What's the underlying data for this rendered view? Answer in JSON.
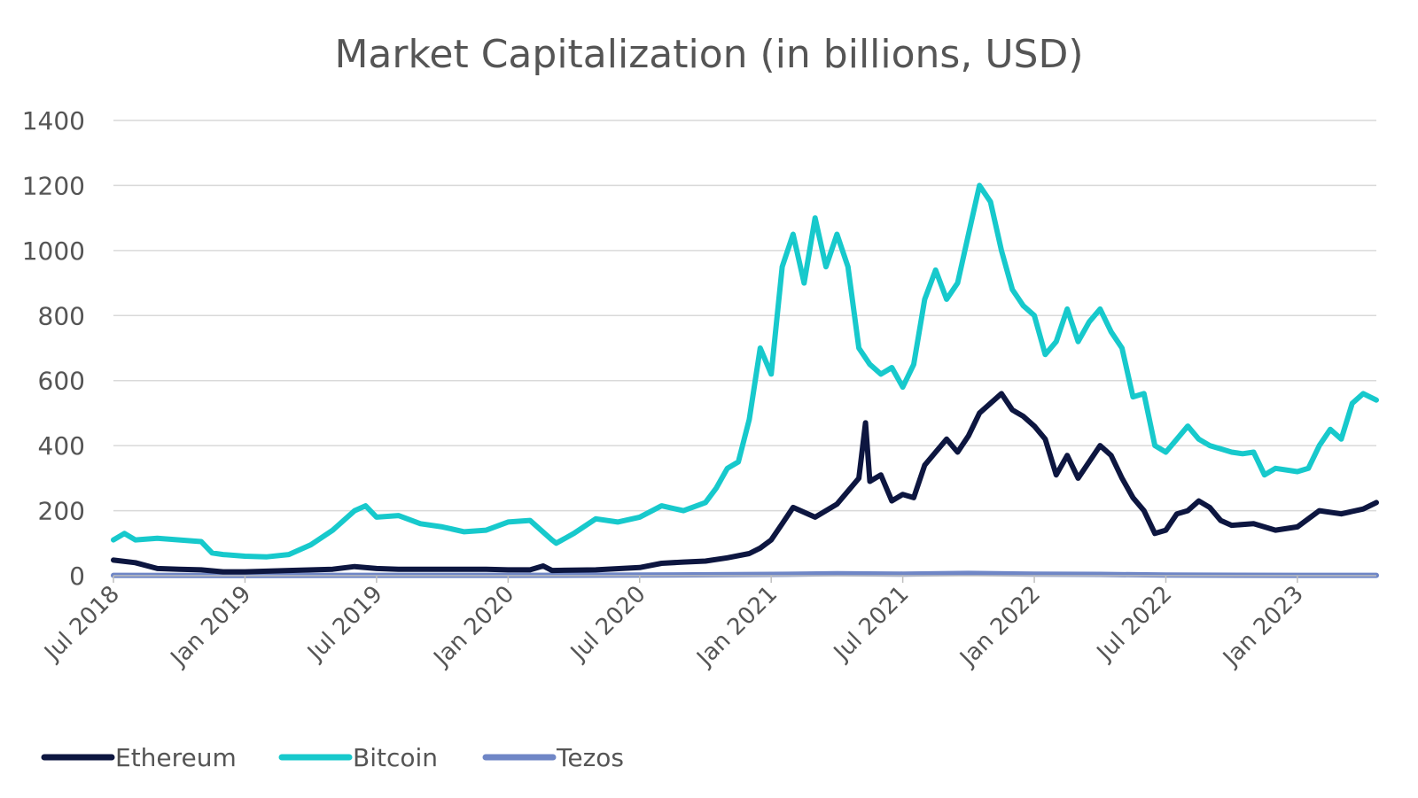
{
  "chart_data": {
    "type": "line",
    "title": "Market Capitalization (in billions, USD)",
    "xlabel": "",
    "ylabel": "",
    "ylim": [
      0,
      1400
    ],
    "yticks": [
      0,
      200,
      400,
      600,
      800,
      1000,
      1200,
      1400
    ],
    "ytick_labels": [
      "0",
      "200",
      "400",
      "600",
      "800",
      "1000",
      "1200",
      "1400"
    ],
    "xlim": [
      0,
      57.6
    ],
    "xticks": [
      0,
      6,
      12,
      18,
      24,
      30,
      36,
      42,
      48,
      54
    ],
    "xtick_labels": [
      "Jul 2018",
      "Jan 2019",
      "Jul 2019",
      "Jan 2020",
      "Jul 2020",
      "Jan 2021",
      "Jul 2021",
      "Jan 2022",
      "Jul 2022",
      "Jan 2023"
    ],
    "x_unit": "months since Jul 2018",
    "grid": true,
    "legend_position": "bottom-left",
    "series": [
      {
        "name": "Ethereum",
        "color": "#0d1640",
        "x": [
          0,
          1,
          2,
          3,
          4,
          5,
          6,
          8,
          10,
          11,
          12,
          13,
          15,
          17,
          18,
          19,
          19.6,
          20,
          22,
          24,
          25,
          26,
          27,
          28,
          29,
          29.5,
          30,
          30.5,
          31,
          32,
          33,
          34,
          34.3,
          34.5,
          35,
          35.5,
          36,
          36.5,
          37,
          37.5,
          38,
          38.5,
          39,
          39.5,
          40,
          40.5,
          41,
          41.5,
          42,
          42.5,
          43,
          43.5,
          44,
          45,
          45.5,
          46,
          46.5,
          47,
          47.5,
          48,
          48.5,
          49,
          49.5,
          50,
          50.5,
          51,
          52,
          53,
          54,
          55,
          56,
          57,
          57.6
        ],
        "values": [
          48,
          40,
          22,
          20,
          18,
          12,
          12,
          16,
          20,
          28,
          22,
          20,
          20,
          20,
          18,
          18,
          30,
          16,
          18,
          25,
          38,
          42,
          45,
          55,
          68,
          85,
          110,
          160,
          210,
          180,
          220,
          300,
          470,
          290,
          310,
          230,
          250,
          240,
          340,
          380,
          420,
          380,
          430,
          500,
          530,
          560,
          510,
          490,
          460,
          420,
          310,
          370,
          300,
          400,
          370,
          300,
          240,
          200,
          130,
          140,
          190,
          200,
          230,
          210,
          170,
          155,
          160,
          140,
          150,
          200,
          190,
          205,
          225
        ]
      },
      {
        "name": "Bitcoin",
        "color": "#17c9cc",
        "x": [
          0,
          0.5,
          1,
          2,
          3,
          4,
          4.5,
          5,
          6,
          7,
          8,
          9,
          10,
          11,
          11.5,
          12,
          13,
          14,
          15,
          16,
          17,
          18,
          19,
          20,
          20.2,
          21,
          22,
          23,
          24,
          25,
          26,
          27,
          27.5,
          28,
          28.5,
          29,
          29.5,
          30,
          30.5,
          31,
          31.5,
          32,
          32.5,
          33,
          33.5,
          34,
          34.5,
          35,
          35.5,
          36,
          36.5,
          37,
          37.5,
          38,
          38.5,
          39,
          39.5,
          40,
          40.5,
          41,
          41.5,
          42,
          42.5,
          43,
          43.5,
          44,
          44.5,
          45,
          45.5,
          46,
          46.5,
          47,
          47.5,
          48,
          48.5,
          49,
          49.5,
          50,
          50.5,
          51,
          51.5,
          52,
          52.5,
          53,
          54,
          54.5,
          55,
          55.5,
          56,
          56.5,
          57,
          57.6
        ],
        "values": [
          110,
          130,
          110,
          115,
          110,
          105,
          70,
          65,
          60,
          58,
          65,
          95,
          140,
          200,
          215,
          180,
          185,
          160,
          150,
          135,
          140,
          165,
          170,
          110,
          100,
          130,
          175,
          165,
          180,
          215,
          200,
          225,
          270,
          330,
          350,
          480,
          700,
          620,
          950,
          1050,
          900,
          1100,
          950,
          1050,
          950,
          700,
          650,
          620,
          640,
          580,
          650,
          850,
          940,
          850,
          900,
          1050,
          1200,
          1150,
          1000,
          880,
          830,
          800,
          680,
          720,
          820,
          720,
          780,
          820,
          750,
          700,
          550,
          560,
          400,
          380,
          420,
          460,
          420,
          400,
          390,
          380,
          375,
          380,
          310,
          330,
          320,
          330,
          400,
          450,
          420,
          530,
          560,
          540
        ]
      },
      {
        "name": "Tezos",
        "color": "#6f86c6",
        "x": [
          0,
          6,
          12,
          18,
          24,
          30,
          33,
          36,
          39,
          42,
          45,
          48,
          54,
          57.6
        ],
        "values": [
          1,
          0.5,
          1,
          1,
          2,
          4,
          6,
          5,
          7,
          5,
          4,
          2,
          1,
          1
        ]
      }
    ]
  }
}
